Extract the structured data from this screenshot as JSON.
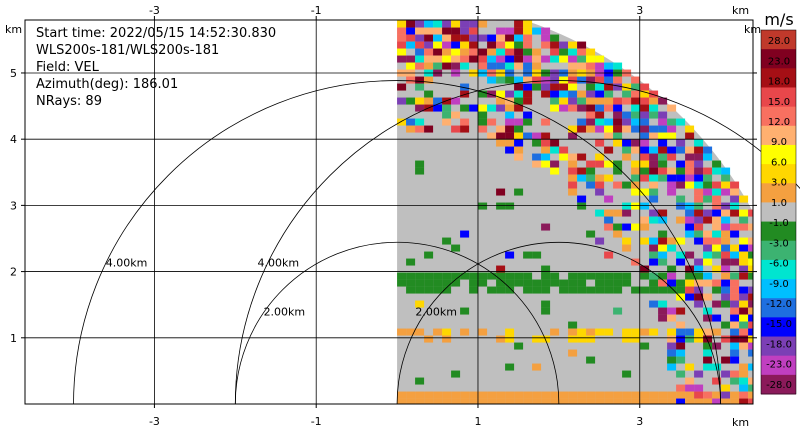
{
  "info": {
    "start_time": "Start time: 2022/05/15 14:52:30.830",
    "instrument": "WLS200s-181/WLS200s-181",
    "field": "Field: VEL",
    "azimuth": "Azimuth(deg): 186.01",
    "nrays": "NRays: 89"
  },
  "chart_data": {
    "type": "heatmap",
    "description_units": "km",
    "x_unit_label": "km",
    "y_unit_label": "km",
    "x_ticks": [
      "-3",
      "-1",
      "1",
      "3"
    ],
    "x_tick_values": [
      -3,
      -1,
      1,
      3
    ],
    "y_ticks": [
      "1",
      "2",
      "3",
      "4",
      "5"
    ],
    "y_tick_values": [
      1,
      2,
      3,
      4,
      5
    ],
    "xlim": [
      -4.6,
      4.4
    ],
    "ylim": [
      0,
      5.8
    ],
    "grid": true,
    "range_rings": [
      {
        "radius_km": 2.0,
        "center_x": 0,
        "label": "2.00km"
      },
      {
        "radius_km": 4.0,
        "center_x": 0,
        "label": "4.00km"
      },
      {
        "radius_km": 2.0,
        "center_x": 2.0,
        "label": "2.00km"
      },
      {
        "radius_km": 4.0,
        "center_x": 2.0,
        "label": "4.00km"
      }
    ],
    "sector": {
      "center_x": 0,
      "angle_start_deg": 0,
      "angle_end_deg": 90,
      "max_range_km": 5.0
    },
    "colorbar": {
      "title": "m/s",
      "labels": [
        "28.0",
        "23.0",
        "18.0",
        "15.0",
        "12.0",
        "9.0",
        "6.0",
        "3.0",
        "1.0",
        "-1.0",
        "-3.0",
        "-6.0",
        "-9.0",
        "-12.0",
        "-15.0",
        "-18.0",
        "-23.0",
        "-28.0"
      ],
      "colors": [
        "#c0392b",
        "#800020",
        "#a50f15",
        "#e8474b",
        "#f87060",
        "#ffb070",
        "#ffff00",
        "#ffd700",
        "#f4a040",
        "#bfbfbf",
        "#228b22",
        "#3cb371",
        "#00e5d0",
        "#00bfff",
        "#1e6fe0",
        "#0000ff",
        "#7b3fb5",
        "#c03fc0",
        "#8b1a5a"
      ]
    }
  }
}
